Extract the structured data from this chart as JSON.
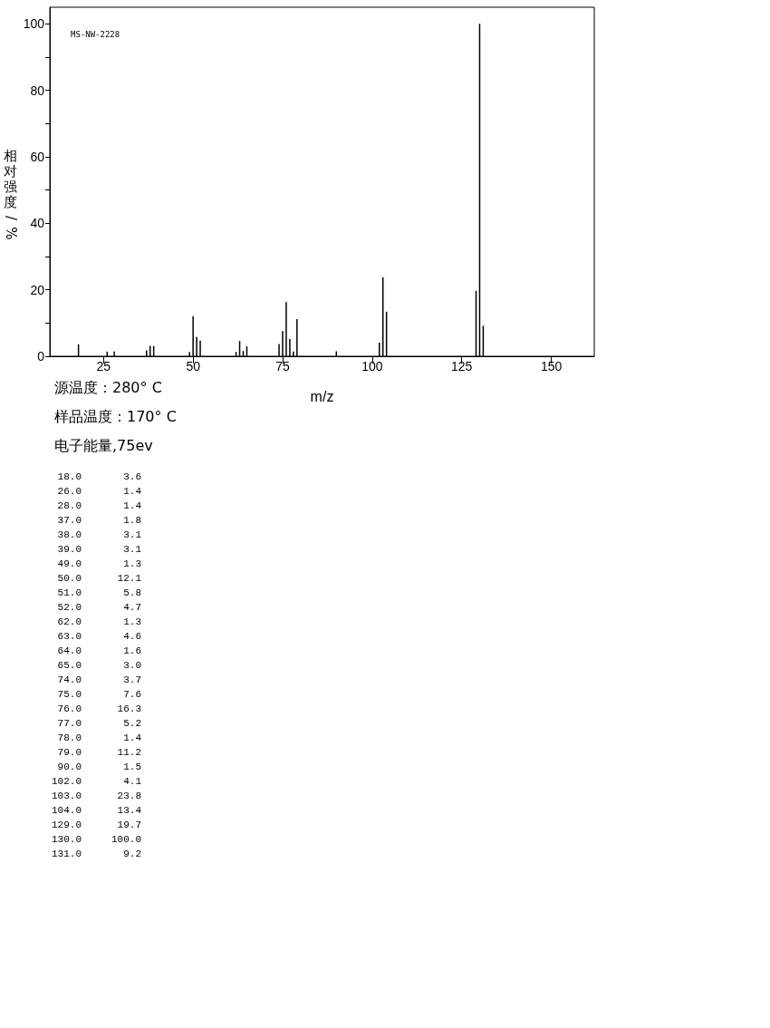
{
  "chart_data": [
    {
      "type": "bar",
      "ylabel": "相对强度/%",
      "xlabel": "m/z",
      "x": [
        18,
        26,
        28,
        37,
        38,
        39,
        49,
        50,
        51,
        52,
        62,
        63,
        64,
        65,
        74,
        75,
        76,
        77,
        78,
        79,
        90,
        102,
        103,
        104,
        129,
        130,
        131
      ],
      "values": [
        3.6,
        1.4,
        1.4,
        1.8,
        3.1,
        3.1,
        1.3,
        12.1,
        5.8,
        4.7,
        1.3,
        4.6,
        1.6,
        3.0,
        3.7,
        7.6,
        16.3,
        5.2,
        1.4,
        11.2,
        1.5,
        4.1,
        23.8,
        13.4,
        19.7,
        100.0,
        9.2
      ],
      "color": "#000000",
      "xlim": [
        10,
        162
      ],
      "xticks": [
        25,
        50,
        75,
        100,
        125,
        150
      ],
      "ylim": [
        0,
        105
      ],
      "yticks": [
        0,
        {
          "value": 10,
          "label": null
        },
        20,
        {
          "value": 30,
          "label": null
        },
        40,
        {
          "value": 50,
          "label": null
        },
        60,
        {
          "value": 70,
          "label": null
        },
        80,
        {
          "value": 90,
          "label": null
        },
        100
      ],
      "annotations": [
        "MS-NW-2228",
        "源温度：280° C",
        "样品温度：170° C",
        "电子能量,75ev"
      ]
    },
    {
      "type": "other",
      "annotations": [
        " 18.0       3.6",
        " 26.0       1.4",
        " 28.0       1.4",
        " 37.0       1.8",
        " 38.0       3.1",
        " 39.0       3.1",
        " 49.0       1.3",
        " 50.0      12.1",
        " 51.0       5.8",
        " 52.0       4.7",
        " 62.0       1.3",
        " 63.0       4.6",
        " 64.0       1.6",
        " 65.0       3.0",
        " 74.0       3.7",
        " 75.0       7.6",
        " 76.0      16.3",
        " 77.0       5.2",
        " 78.0       1.4",
        " 79.0      11.2",
        " 90.0       1.5",
        "102.0       4.1",
        "103.0      23.8",
        "104.0      13.4",
        "129.0      19.7",
        "130.0     100.0",
        "131.0       9.2"
      ]
    }
  ]
}
